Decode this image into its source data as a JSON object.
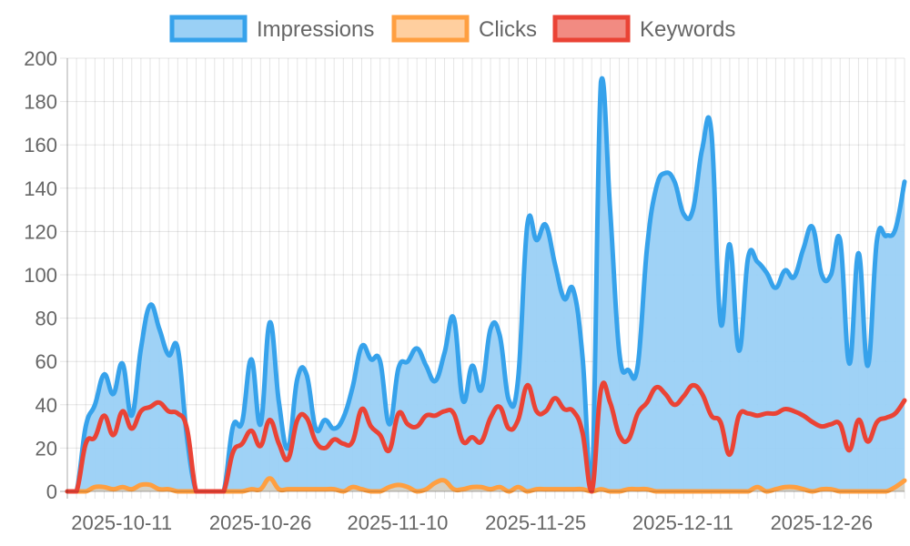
{
  "chart_data": {
    "type": "area",
    "ylim": [
      0,
      200
    ],
    "y_ticks": [
      0,
      20,
      40,
      60,
      80,
      100,
      120,
      140,
      160,
      180,
      200
    ],
    "x_tick_labels": [
      "2025-10-11",
      "2025-10-26",
      "2025-11-10",
      "2025-11-25",
      "2025-12-11",
      "2025-12-26"
    ],
    "x": [
      "2025-10-09",
      "2025-10-10",
      "2025-10-11",
      "2025-10-12",
      "2025-10-13",
      "2025-10-14",
      "2025-10-15",
      "2025-10-16",
      "2025-10-17",
      "2025-10-18",
      "2025-10-19",
      "2025-10-20",
      "2025-10-21",
      "2025-10-22",
      "2025-10-23",
      "2025-10-24",
      "2025-10-25",
      "2025-10-26",
      "2025-10-27",
      "2025-10-28",
      "2025-10-29",
      "2025-10-30",
      "2025-10-31",
      "2025-11-01",
      "2025-11-02",
      "2025-11-03",
      "2025-11-04",
      "2025-11-05",
      "2025-11-06",
      "2025-11-07",
      "2025-11-08",
      "2025-11-09",
      "2025-11-10",
      "2025-11-11",
      "2025-11-12",
      "2025-11-13",
      "2025-11-14",
      "2025-11-15",
      "2025-11-16",
      "2025-11-17",
      "2025-11-18",
      "2025-11-19",
      "2025-11-20",
      "2025-11-21",
      "2025-11-22",
      "2025-11-23",
      "2025-11-24",
      "2025-11-25",
      "2025-11-26",
      "2025-11-27",
      "2025-11-28",
      "2025-11-29",
      "2025-11-30",
      "2025-12-01",
      "2025-12-02",
      "2025-12-03",
      "2025-12-04",
      "2025-12-05",
      "2025-12-06",
      "2025-12-07",
      "2025-12-08",
      "2025-12-09",
      "2025-12-10",
      "2025-12-11",
      "2025-12-12",
      "2025-12-13",
      "2025-12-14",
      "2025-12-15",
      "2025-12-16",
      "2025-12-17",
      "2025-12-18",
      "2025-12-19",
      "2025-12-20",
      "2025-12-21",
      "2025-12-22",
      "2025-12-23",
      "2025-12-24",
      "2025-12-25",
      "2025-12-26",
      "2025-12-27",
      "2025-12-28",
      "2025-12-29",
      "2025-12-30",
      "2025-12-31",
      "2026-01-01",
      "2026-01-02",
      "2026-01-03",
      "2026-01-04",
      "2026-01-05",
      "2026-01-06",
      "2026-01-07",
      "2026-01-08"
    ],
    "series": [
      {
        "name": "Impressions",
        "border_color": "#36a2eb",
        "fill_color": "#9ad0f5",
        "values": [
          0,
          0,
          30,
          40,
          54,
          45,
          59,
          35,
          66,
          86,
          75,
          63,
          66,
          25,
          0,
          0,
          0,
          0,
          30,
          32,
          61,
          31,
          78,
          41,
          20,
          52,
          54,
          29,
          33,
          29,
          34,
          48,
          67,
          61,
          60,
          31,
          57,
          60,
          66,
          58,
          51,
          64,
          80,
          42,
          58,
          47,
          75,
          72,
          42,
          52,
          123,
          116,
          123,
          105,
          89,
          93,
          62,
          0,
          189,
          130,
          64,
          56,
          58,
          112,
          140,
          147,
          143,
          128,
          130,
          158,
          166,
          78,
          114,
          65,
          108,
          106,
          101,
          94,
          102,
          99,
          112,
          122,
          100,
          100,
          116,
          59,
          110,
          58,
          116,
          118,
          121,
          143
        ]
      },
      {
        "name": "Clicks",
        "border_color": "#ff9f40",
        "fill_color": "#ffcf9f",
        "values": [
          0,
          0,
          0,
          2,
          2,
          1,
          2,
          1,
          3,
          3,
          1,
          1,
          0,
          0,
          0,
          0,
          0,
          0,
          0,
          0,
          1,
          1,
          6,
          1,
          1,
          1,
          1,
          1,
          1,
          1,
          0,
          2,
          1,
          0,
          0,
          2,
          3,
          2,
          0,
          1,
          4,
          5,
          1,
          1,
          2,
          2,
          1,
          2,
          0,
          2,
          0,
          1,
          1,
          1,
          1,
          1,
          1,
          0,
          1,
          0,
          0,
          1,
          1,
          1,
          0,
          0,
          0,
          0,
          0,
          0,
          0,
          0,
          0,
          0,
          0,
          2,
          0,
          1,
          2,
          2,
          1,
          0,
          1,
          1,
          0,
          0,
          0,
          0,
          0,
          0,
          2,
          5
        ]
      },
      {
        "name": "Keywords",
        "border_color": "#ea4335",
        "fill_color": "#f28b82",
        "values": [
          0,
          0,
          22,
          25,
          35,
          26,
          37,
          29,
          37,
          39,
          41,
          37,
          36,
          29,
          0,
          0,
          0,
          0,
          18,
          22,
          28,
          21,
          33,
          22,
          15,
          33,
          34,
          23,
          20,
          24,
          22,
          23,
          38,
          30,
          26,
          19,
          36,
          31,
          30,
          35,
          35,
          37,
          36,
          23,
          25,
          23,
          34,
          39,
          29,
          33,
          49,
          37,
          37,
          43,
          38,
          37,
          27,
          0,
          47,
          41,
          26,
          24,
          36,
          41,
          48,
          45,
          40,
          44,
          49,
          45,
          35,
          32,
          17,
          35,
          36,
          35,
          36,
          36,
          38,
          37,
          35,
          32,
          30,
          31,
          31,
          19,
          33,
          23,
          32,
          34,
          36,
          42
        ]
      }
    ]
  }
}
